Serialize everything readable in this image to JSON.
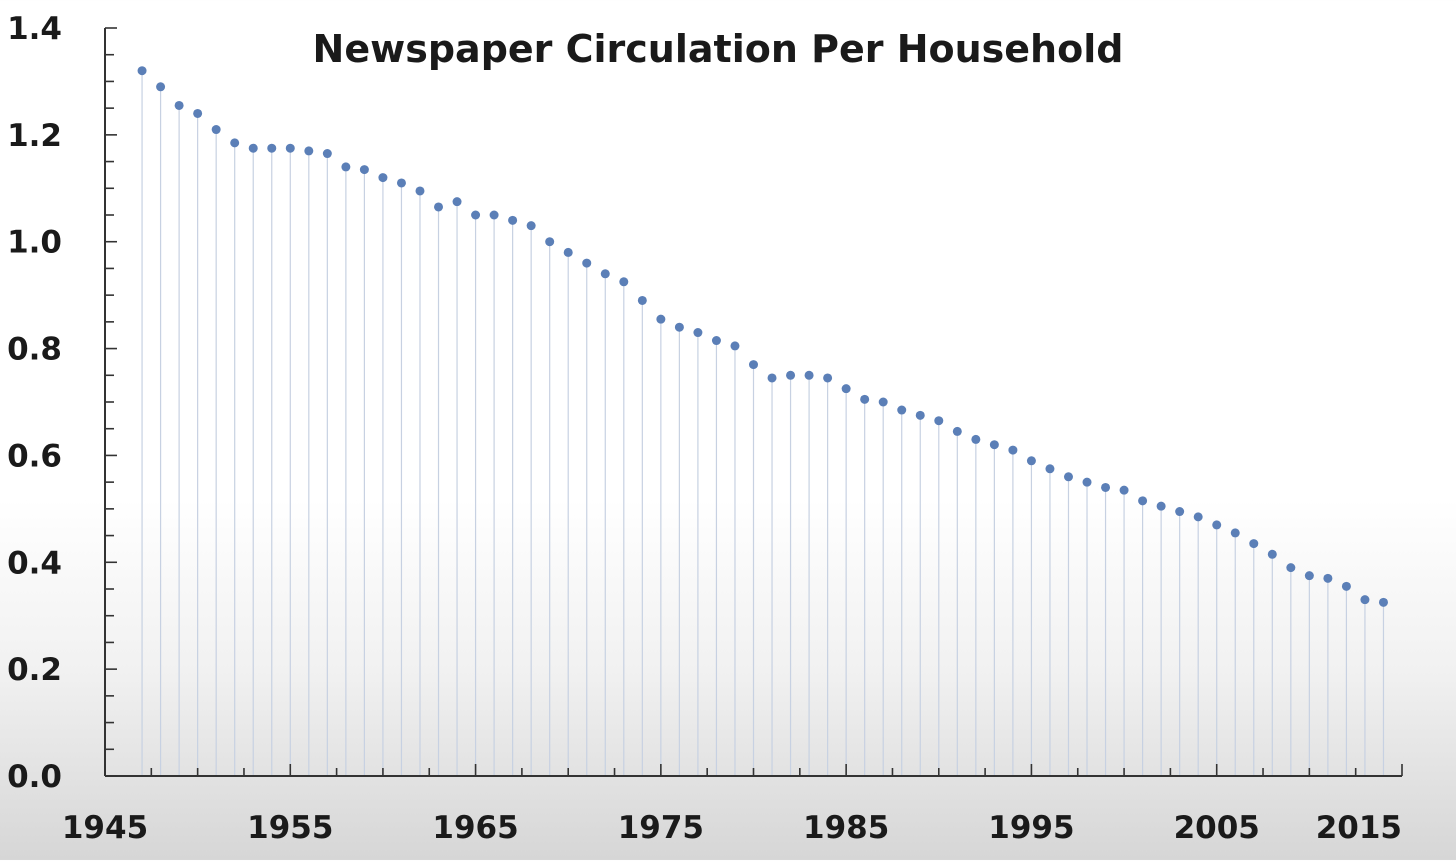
{
  "chart_data": {
    "type": "scatter",
    "title": "Newspaper Circulation Per Household",
    "xlabel": "",
    "ylabel": "",
    "xlim": [
      1945,
      2015
    ],
    "ylim": [
      0.0,
      1.4
    ],
    "x_ticks": [
      "1945",
      "1955",
      "1965",
      "1975",
      "1985",
      "1995",
      "2005",
      "2015"
    ],
    "y_ticks": [
      "0.0",
      "0.2",
      "0.4",
      "0.6",
      "0.8",
      "1.0",
      "1.2",
      "1.4"
    ],
    "grid": false,
    "drop_lines": true,
    "marker_color": "#5b7fb7",
    "drop_line_color": "#c7d1e2",
    "x": [
      1947,
      1948,
      1949,
      1950,
      1951,
      1952,
      1953,
      1954,
      1955,
      1956,
      1957,
      1958,
      1959,
      1960,
      1961,
      1962,
      1963,
      1964,
      1965,
      1966,
      1967,
      1968,
      1969,
      1970,
      1971,
      1972,
      1973,
      1974,
      1975,
      1976,
      1977,
      1978,
      1979,
      1980,
      1981,
      1982,
      1983,
      1984,
      1985,
      1986,
      1987,
      1988,
      1989,
      1990,
      1991,
      1992,
      1993,
      1994,
      1995,
      1996,
      1997,
      1998,
      1999,
      2000,
      2001,
      2002,
      2003,
      2004,
      2005,
      2006,
      2007,
      2008,
      2009,
      2010,
      2011,
      2012,
      2013,
      2014
    ],
    "values": [
      1.32,
      1.29,
      1.255,
      1.24,
      1.21,
      1.185,
      1.175,
      1.175,
      1.175,
      1.17,
      1.165,
      1.14,
      1.135,
      1.12,
      1.11,
      1.095,
      1.065,
      1.075,
      1.05,
      1.05,
      1.04,
      1.03,
      1.0,
      0.98,
      0.96,
      0.94,
      0.925,
      0.89,
      0.855,
      0.84,
      0.83,
      0.815,
      0.805,
      0.77,
      0.745,
      0.75,
      0.75,
      0.745,
      0.725,
      0.705,
      0.7,
      0.685,
      0.675,
      0.665,
      0.645,
      0.63,
      0.62,
      0.61,
      0.59,
      0.575,
      0.56,
      0.55,
      0.54,
      0.535,
      0.515,
      0.505,
      0.495,
      0.485,
      0.47,
      0.455,
      0.435,
      0.415,
      0.39,
      0.375,
      0.37,
      0.355,
      0.33,
      0.325
    ]
  }
}
